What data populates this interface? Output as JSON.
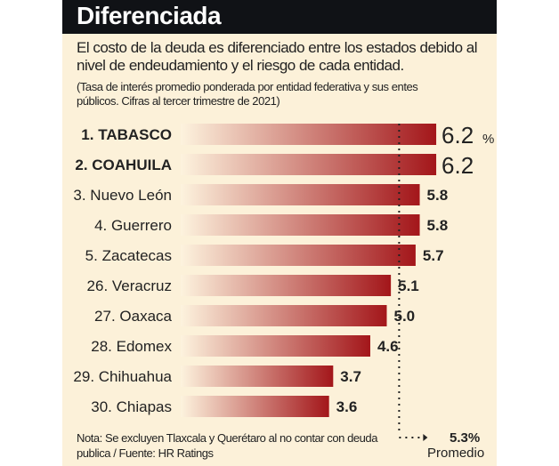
{
  "title": "Diferenciada",
  "intro": "El costo de la deuda es diferenciado entre los estados debido al nivel de endeudamiento y el riesgo de cada entidad.",
  "subtitle": "(Tasa de interés promedio ponderada por entidad federativa y sus entes públicos. Cifras al tercer trimestre de 2021)",
  "note": "Nota: Se excluyen Tlaxcala y Querétaro al no contar con deuda publica / Fuente: HR Ratings",
  "colors": {
    "header": "#101216",
    "background": "#fcf1d9",
    "bar_start": "#fdf3de",
    "bar_end": "#a3161a"
  },
  "chart_data": {
    "type": "bar",
    "orientation": "horizontal",
    "unit": "%",
    "categories": [
      "1. TABASCO",
      "2. COAHUILA",
      "3. Nuevo León",
      "4. Guerrero",
      "5. Zacatecas",
      "26. Veracruz",
      "27. Oaxaca",
      "28. Edomex",
      "29. Chihuahua",
      "30. Chiapas"
    ],
    "values": [
      6.2,
      6.2,
      5.8,
      5.8,
      5.7,
      5.1,
      5.0,
      4.6,
      3.7,
      3.6
    ],
    "value_labels": [
      "6.2",
      "6.2",
      "5.8",
      "5.8",
      "5.7",
      "5.1",
      "5.0",
      "4.6",
      "3.7",
      "3.6"
    ],
    "bold_categories": [
      "1. TABASCO",
      "2. COAHUILA"
    ],
    "reference_line": {
      "value": 5.3,
      "label": "5.3%",
      "caption": "Promedio"
    }
  }
}
